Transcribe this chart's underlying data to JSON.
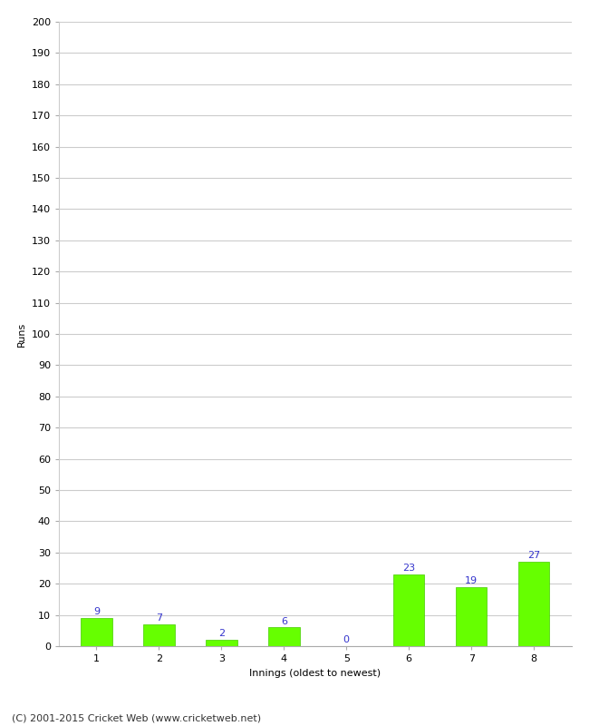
{
  "categories": [
    "1",
    "2",
    "3",
    "4",
    "5",
    "6",
    "7",
    "8"
  ],
  "values": [
    9,
    7,
    2,
    6,
    0,
    23,
    19,
    27
  ],
  "bar_color": "#66ff00",
  "bar_edge_color": "#44cc00",
  "label_color": "#3333cc",
  "xlabel": "Innings (oldest to newest)",
  "ylabel": "Runs",
  "ylim": [
    0,
    200
  ],
  "ytick_step": 10,
  "background_color": "#ffffff",
  "grid_color": "#cccccc",
  "footer_text": "(C) 2001-2015 Cricket Web (www.cricketweb.net)",
  "label_fontsize": 8,
  "axis_label_fontsize": 8,
  "tick_fontsize": 8,
  "footer_fontsize": 8
}
